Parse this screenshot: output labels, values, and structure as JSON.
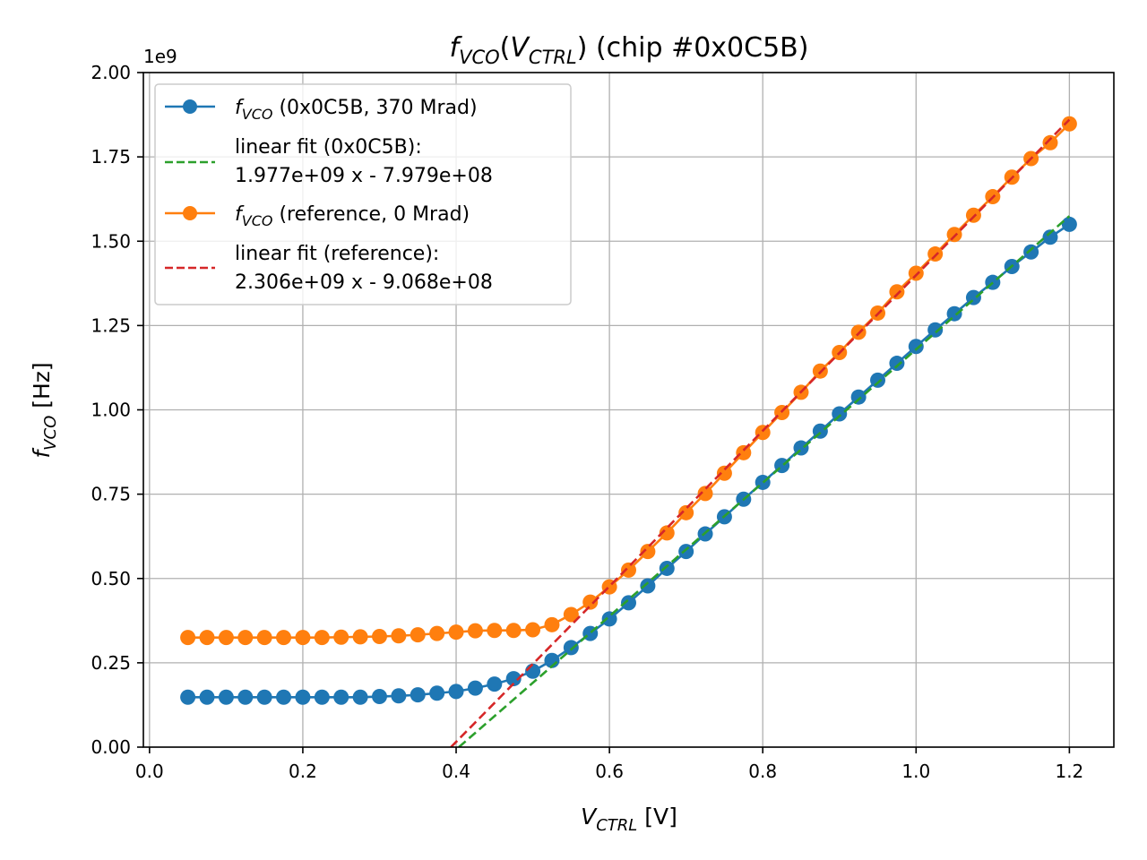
{
  "chart_data": {
    "type": "line",
    "title": {
      "f": "f",
      "sub": "VCO",
      "open": "(",
      "v": "V",
      "vsub": "CTRL",
      "rest": ") (chip #0x0C5B)"
    },
    "xlabel": {
      "v": "V",
      "sub": "CTRL",
      "rest": " [V]"
    },
    "ylabel": {
      "f": "f",
      "sub": "VCO",
      "rest": " [Hz]"
    },
    "y_offset_label": "1e9",
    "xlim": [
      -0.008,
      1.258
    ],
    "ylim": [
      0,
      2.0
    ],
    "xticks": [
      0.0,
      0.2,
      0.4,
      0.6,
      0.8,
      1.0,
      1.2
    ],
    "xtick_labels": [
      "0.0",
      "0.2",
      "0.4",
      "0.6",
      "0.8",
      "1.0",
      "1.2"
    ],
    "yticks": [
      0.0,
      0.25,
      0.5,
      0.75,
      1.0,
      1.25,
      1.5,
      1.75,
      2.0
    ],
    "ytick_labels": [
      "0.00",
      "0.25",
      "0.50",
      "0.75",
      "1.00",
      "1.25",
      "1.50",
      "1.75",
      "2.00"
    ],
    "grid": true,
    "legend_position": "top-left",
    "x": [
      0.05,
      0.075,
      0.1,
      0.125,
      0.15,
      0.175,
      0.2,
      0.225,
      0.25,
      0.275,
      0.3,
      0.325,
      0.35,
      0.375,
      0.4,
      0.425,
      0.45,
      0.475,
      0.5,
      0.525,
      0.55,
      0.575,
      0.6,
      0.625,
      0.65,
      0.675,
      0.7,
      0.725,
      0.75,
      0.775,
      0.8,
      0.825,
      0.85,
      0.875,
      0.9,
      0.925,
      0.95,
      0.975,
      1.0,
      1.025,
      1.05,
      1.075,
      1.1,
      1.125,
      1.15,
      1.175,
      1.2
    ],
    "series": [
      {
        "name": "0x0C5B",
        "legend_sym": "f",
        "legend_sub": "VCO",
        "legend_text": " (0x0C5B, 370 Mrad)",
        "color": "#1f77b4",
        "style": "line-marker",
        "values": [
          0.148,
          0.148,
          0.148,
          0.148,
          0.148,
          0.148,
          0.148,
          0.148,
          0.148,
          0.148,
          0.15,
          0.152,
          0.155,
          0.16,
          0.165,
          0.175,
          0.187,
          0.203,
          0.225,
          0.257,
          0.295,
          0.337,
          0.38,
          0.428,
          0.478,
          0.53,
          0.58,
          0.632,
          0.683,
          0.735,
          0.785,
          0.835,
          0.887,
          0.937,
          0.988,
          1.038,
          1.088,
          1.138,
          1.188,
          1.237,
          1.285,
          1.333,
          1.378,
          1.425,
          1.468,
          1.512,
          1.55
        ]
      },
      {
        "name": "linear fit (0x0C5B)",
        "legend_text": "linear fit (0x0C5B):",
        "legend_text2": "1.977e+09 x - 7.979e+08",
        "color": "#2ca02c",
        "style": "dashed",
        "slope": 1.977,
        "intercept": -0.7979,
        "x_range": [
          0.4036,
          1.2
        ]
      },
      {
        "name": "reference",
        "legend_sym": "f",
        "legend_sub": "VCO",
        "legend_text": " (reference, 0 Mrad)",
        "color": "#ff7f0e",
        "style": "line-marker",
        "values": [
          0.325,
          0.325,
          0.325,
          0.325,
          0.325,
          0.325,
          0.325,
          0.325,
          0.326,
          0.327,
          0.328,
          0.33,
          0.333,
          0.337,
          0.341,
          0.345,
          0.346,
          0.346,
          0.348,
          0.363,
          0.393,
          0.43,
          0.475,
          0.525,
          0.58,
          0.635,
          0.695,
          0.752,
          0.812,
          0.873,
          0.933,
          0.992,
          1.052,
          1.115,
          1.17,
          1.23,
          1.287,
          1.35,
          1.405,
          1.462,
          1.52,
          1.577,
          1.632,
          1.69,
          1.745,
          1.792,
          1.848
        ]
      },
      {
        "name": "linear fit (reference)",
        "legend_text": "linear fit (reference):",
        "legend_text2": "2.306e+09 x - 9.068e+08",
        "color": "#d62728",
        "style": "dashed",
        "slope": 2.306,
        "intercept": -0.9068,
        "x_range": [
          0.3932,
          1.2
        ]
      }
    ]
  }
}
